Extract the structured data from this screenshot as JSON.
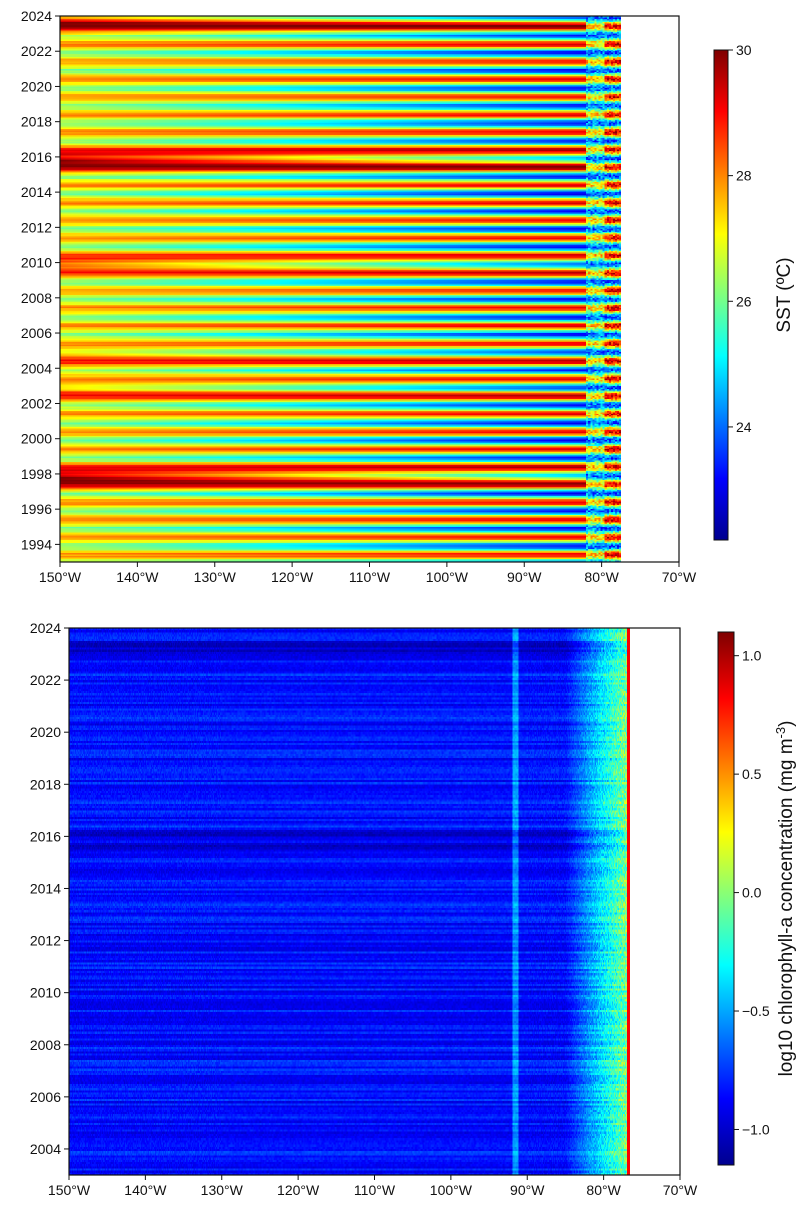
{
  "chart_data": [
    {
      "type": "heatmap",
      "x_axis": {
        "range": [
          -150,
          -70
        ],
        "ticks": [
          -150,
          -140,
          -130,
          -120,
          -110,
          -100,
          -90,
          -80,
          -70
        ],
        "tick_labels": [
          "150°W",
          "140°W",
          "130°W",
          "120°W",
          "110°W",
          "100°W",
          "90°W",
          "80°W",
          "70°W"
        ]
      },
      "y_axis": {
        "range": [
          1993,
          2024
        ],
        "ticks": [
          1994,
          1996,
          1998,
          2000,
          2002,
          2004,
          2006,
          2008,
          2010,
          2012,
          2014,
          2016,
          2018,
          2020,
          2022,
          2024
        ],
        "tick_labels": [
          "1994",
          "1996",
          "1998",
          "2000",
          "2002",
          "2004",
          "2006",
          "2008",
          "2010",
          "2012",
          "2014",
          "2016",
          "2018",
          "2020",
          "2022",
          "2024"
        ]
      },
      "colorbar": {
        "label": "SST (ºC)",
        "range": [
          22.2,
          30
        ],
        "ticks": [
          24,
          26,
          28,
          30
        ],
        "tick_labels": [
          "24",
          "26",
          "28",
          "30"
        ]
      },
      "colormap": [
        "#00008f",
        "#0000ff",
        "#007fff",
        "#00ffff",
        "#7fff7f",
        "#ffff00",
        "#ff7f00",
        "#ff0000",
        "#7f0000"
      ],
      "data_extent_lon": [
        -150,
        -77.5
      ],
      "coastal_band_start_lon": -82,
      "warm_events": [
        {
          "year": 2023.6,
          "warmth": 0.8
        },
        {
          "year": 2015.8,
          "warmth": 1.0
        },
        {
          "year": 2009.9,
          "warmth": 0.6
        },
        {
          "year": 1997.8,
          "warmth": 1.0
        },
        {
          "year": 2002.6,
          "warmth": 0.4
        },
        {
          "year": 2004.5,
          "warmth": 0.35
        }
      ]
    },
    {
      "type": "heatmap",
      "x_axis": {
        "range": [
          -150,
          -70
        ],
        "ticks": [
          -150,
          -140,
          -130,
          -120,
          -110,
          -100,
          -90,
          -80,
          -70
        ],
        "tick_labels": [
          "150°W",
          "140°W",
          "130°W",
          "120°W",
          "110°W",
          "100°W",
          "90°W",
          "80°W",
          "70°W"
        ]
      },
      "y_axis": {
        "range": [
          2003,
          2024
        ],
        "ticks": [
          2004,
          2006,
          2008,
          2010,
          2012,
          2014,
          2016,
          2018,
          2020,
          2022,
          2024
        ],
        "tick_labels": [
          "2004",
          "2006",
          "2008",
          "2010",
          "2012",
          "2014",
          "2016",
          "2018",
          "2020",
          "2022",
          "2024"
        ]
      },
      "colorbar": {
        "label": "log10 chlorophyll-a concentration (mg m",
        "label_sup": "-3",
        "label_close": ")",
        "range": [
          -1.15,
          1.1
        ],
        "ticks": [
          -1.0,
          -0.5,
          0.0,
          0.5,
          1.0
        ],
        "tick_labels": [
          "−1.0",
          "−0.5",
          "0.0",
          "0.5",
          "1.0"
        ]
      },
      "colormap": [
        "#00008f",
        "#0000ff",
        "#007fff",
        "#00ffff",
        "#7fff7f",
        "#ffff00",
        "#ff7f00",
        "#ff0000",
        "#7f0000"
      ],
      "data_extent_lon": [
        -150,
        -76.5
      ],
      "coastal_gradient_start_lon": -85,
      "galapagos_streak_lon": -91.5
    }
  ]
}
